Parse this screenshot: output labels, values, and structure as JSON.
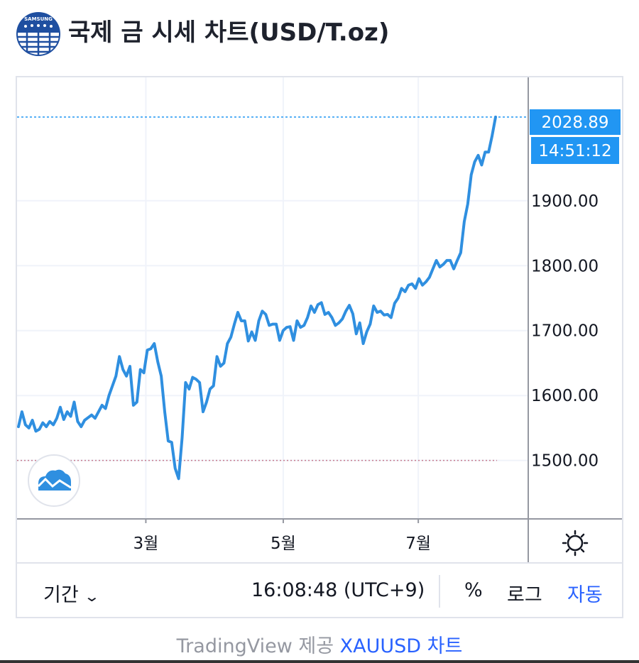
{
  "header": {
    "title": "국제 금 시세 차트(USD/T.oz)",
    "logo_text": "SAMSUNG"
  },
  "chart_data": {
    "type": "line",
    "title": "국제 금 시세 차트(USD/T.oz)",
    "xlabel": "",
    "ylabel": "",
    "x_ticks": [
      "3월",
      "5월",
      "7월"
    ],
    "y_ticks": [
      "1500.00",
      "1600.00",
      "1700.00",
      "1800.00",
      "1900.00"
    ],
    "ylim": [
      1410,
      2090
    ],
    "grid": true,
    "line_color": "#2f8fe0",
    "last_price": "2028.89",
    "last_time": "14:51:12",
    "reference_level": 1500,
    "series": [
      {
        "values": [
          1552,
          1575,
          1555,
          1550,
          1562,
          1545,
          1548,
          1558,
          1552,
          1560,
          1555,
          1565,
          1582,
          1563,
          1575,
          1568,
          1590,
          1560,
          1552,
          1562,
          1566,
          1570,
          1565,
          1575,
          1585,
          1580,
          1600,
          1615,
          1630,
          1660,
          1640,
          1630,
          1645,
          1585,
          1590,
          1640,
          1635,
          1670,
          1672,
          1680,
          1652,
          1630,
          1575,
          1530,
          1528,
          1488,
          1472,
          1535,
          1620,
          1610,
          1628,
          1625,
          1620,
          1575,
          1590,
          1610,
          1615,
          1660,
          1645,
          1650,
          1680,
          1690,
          1710,
          1728,
          1715,
          1715,
          1684,
          1698,
          1685,
          1715,
          1730,
          1725,
          1708,
          1710,
          1710,
          1685,
          1700,
          1705,
          1706,
          1685,
          1715,
          1705,
          1708,
          1720,
          1738,
          1728,
          1740,
          1743,
          1725,
          1728,
          1720,
          1708,
          1712,
          1718,
          1730,
          1739,
          1726,
          1695,
          1712,
          1680,
          1698,
          1710,
          1738,
          1728,
          1730,
          1724,
          1725,
          1720,
          1742,
          1750,
          1765,
          1760,
          1770,
          1772,
          1765,
          1780,
          1770,
          1775,
          1782,
          1795,
          1808,
          1798,
          1802,
          1808,
          1808,
          1795,
          1808,
          1820,
          1868,
          1895,
          1940,
          1960,
          1970,
          1955,
          1975,
          1975,
          2000,
          2028.89
        ]
      }
    ]
  },
  "controls": {
    "period_label": "기간",
    "clock": "16:08:48 (UTC+9)",
    "percent_label": "%",
    "log_label": "로그",
    "auto_label": "자동"
  },
  "footer": {
    "provider": "TradingView 제공",
    "link": "XAUUSD 차트"
  }
}
